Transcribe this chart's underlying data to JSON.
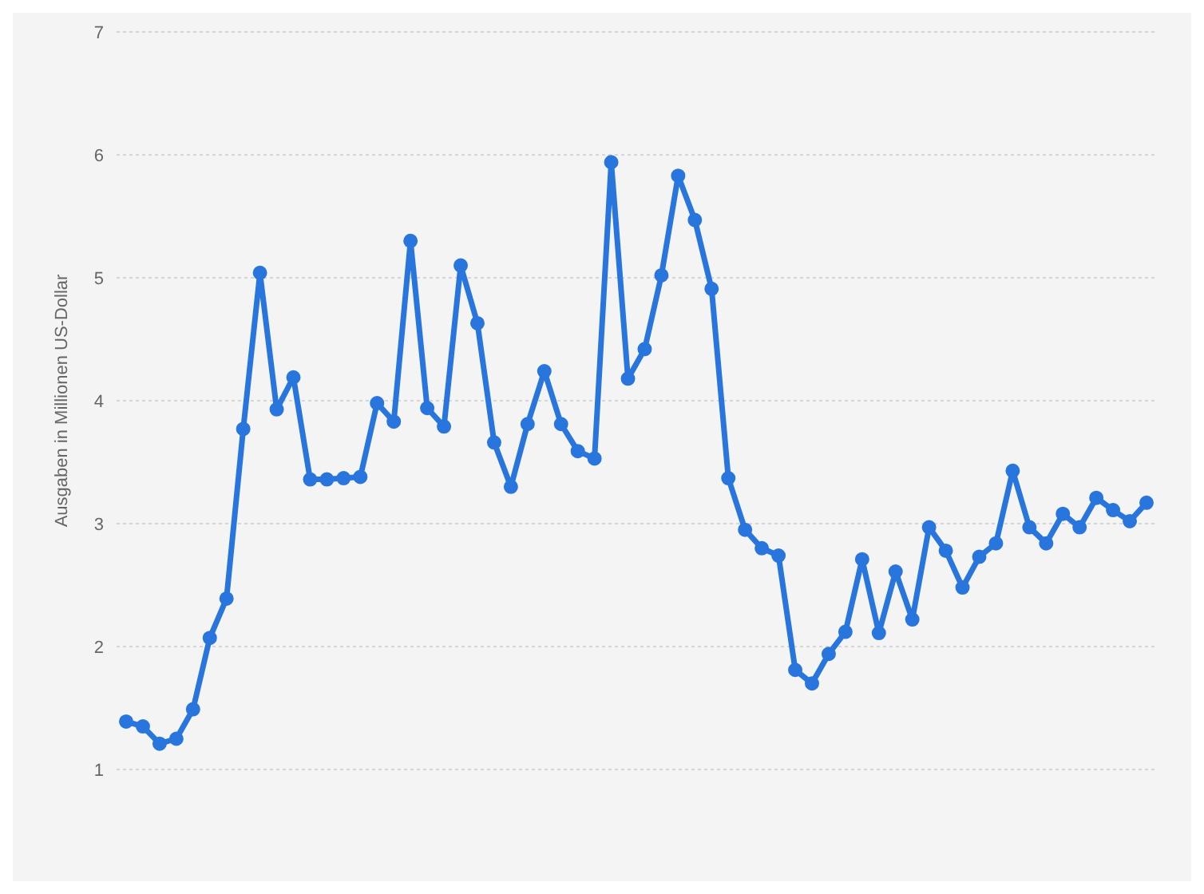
{
  "chart_data": {
    "type": "line",
    "ylabel": "Ausgaben in Millionen US-Dollar",
    "categories": [
      null,
      null,
      null,
      null,
      null,
      null,
      null,
      null,
      null,
      null,
      null,
      null,
      null,
      null,
      null,
      null,
      null,
      null,
      null,
      null,
      null,
      null,
      null,
      null,
      null,
      null,
      null,
      null,
      null,
      null,
      null,
      null,
      null,
      null,
      null,
      null,
      null,
      null,
      null,
      null,
      null,
      null,
      null,
      null,
      null,
      null,
      null,
      null,
      null,
      null,
      null,
      null,
      null,
      null,
      null,
      null,
      null,
      null,
      null,
      null,
      null,
      null
    ],
    "series": [
      {
        "color": "#2876dd",
        "values": [
          1.39,
          1.35,
          1.21,
          1.25,
          1.49,
          2.07,
          2.39,
          3.77,
          5.04,
          3.93,
          4.19,
          3.36,
          3.36,
          3.37,
          3.38,
          3.98,
          3.83,
          5.3,
          3.94,
          3.79,
          5.1,
          4.63,
          3.66,
          3.3,
          3.81,
          4.24,
          3.81,
          3.59,
          3.53,
          5.94,
          4.18,
          4.42,
          5.02,
          5.83,
          5.47,
          4.91,
          3.37,
          2.95,
          2.8,
          2.74,
          1.81,
          1.7,
          1.94,
          2.12,
          2.71,
          2.11,
          2.61,
          2.22,
          2.97,
          2.78,
          2.48,
          2.73,
          2.84,
          3.43,
          2.97,
          2.84,
          3.08,
          2.97,
          3.21,
          3.11,
          3.02,
          3.17
        ]
      }
    ],
    "ylim": [
      1,
      7
    ],
    "yticks": [
      1,
      2,
      3,
      4,
      5,
      6,
      7
    ],
    "grid": "y",
    "marker": "circle",
    "line_style": "solid",
    "legend": false,
    "tick_labels": "y"
  }
}
